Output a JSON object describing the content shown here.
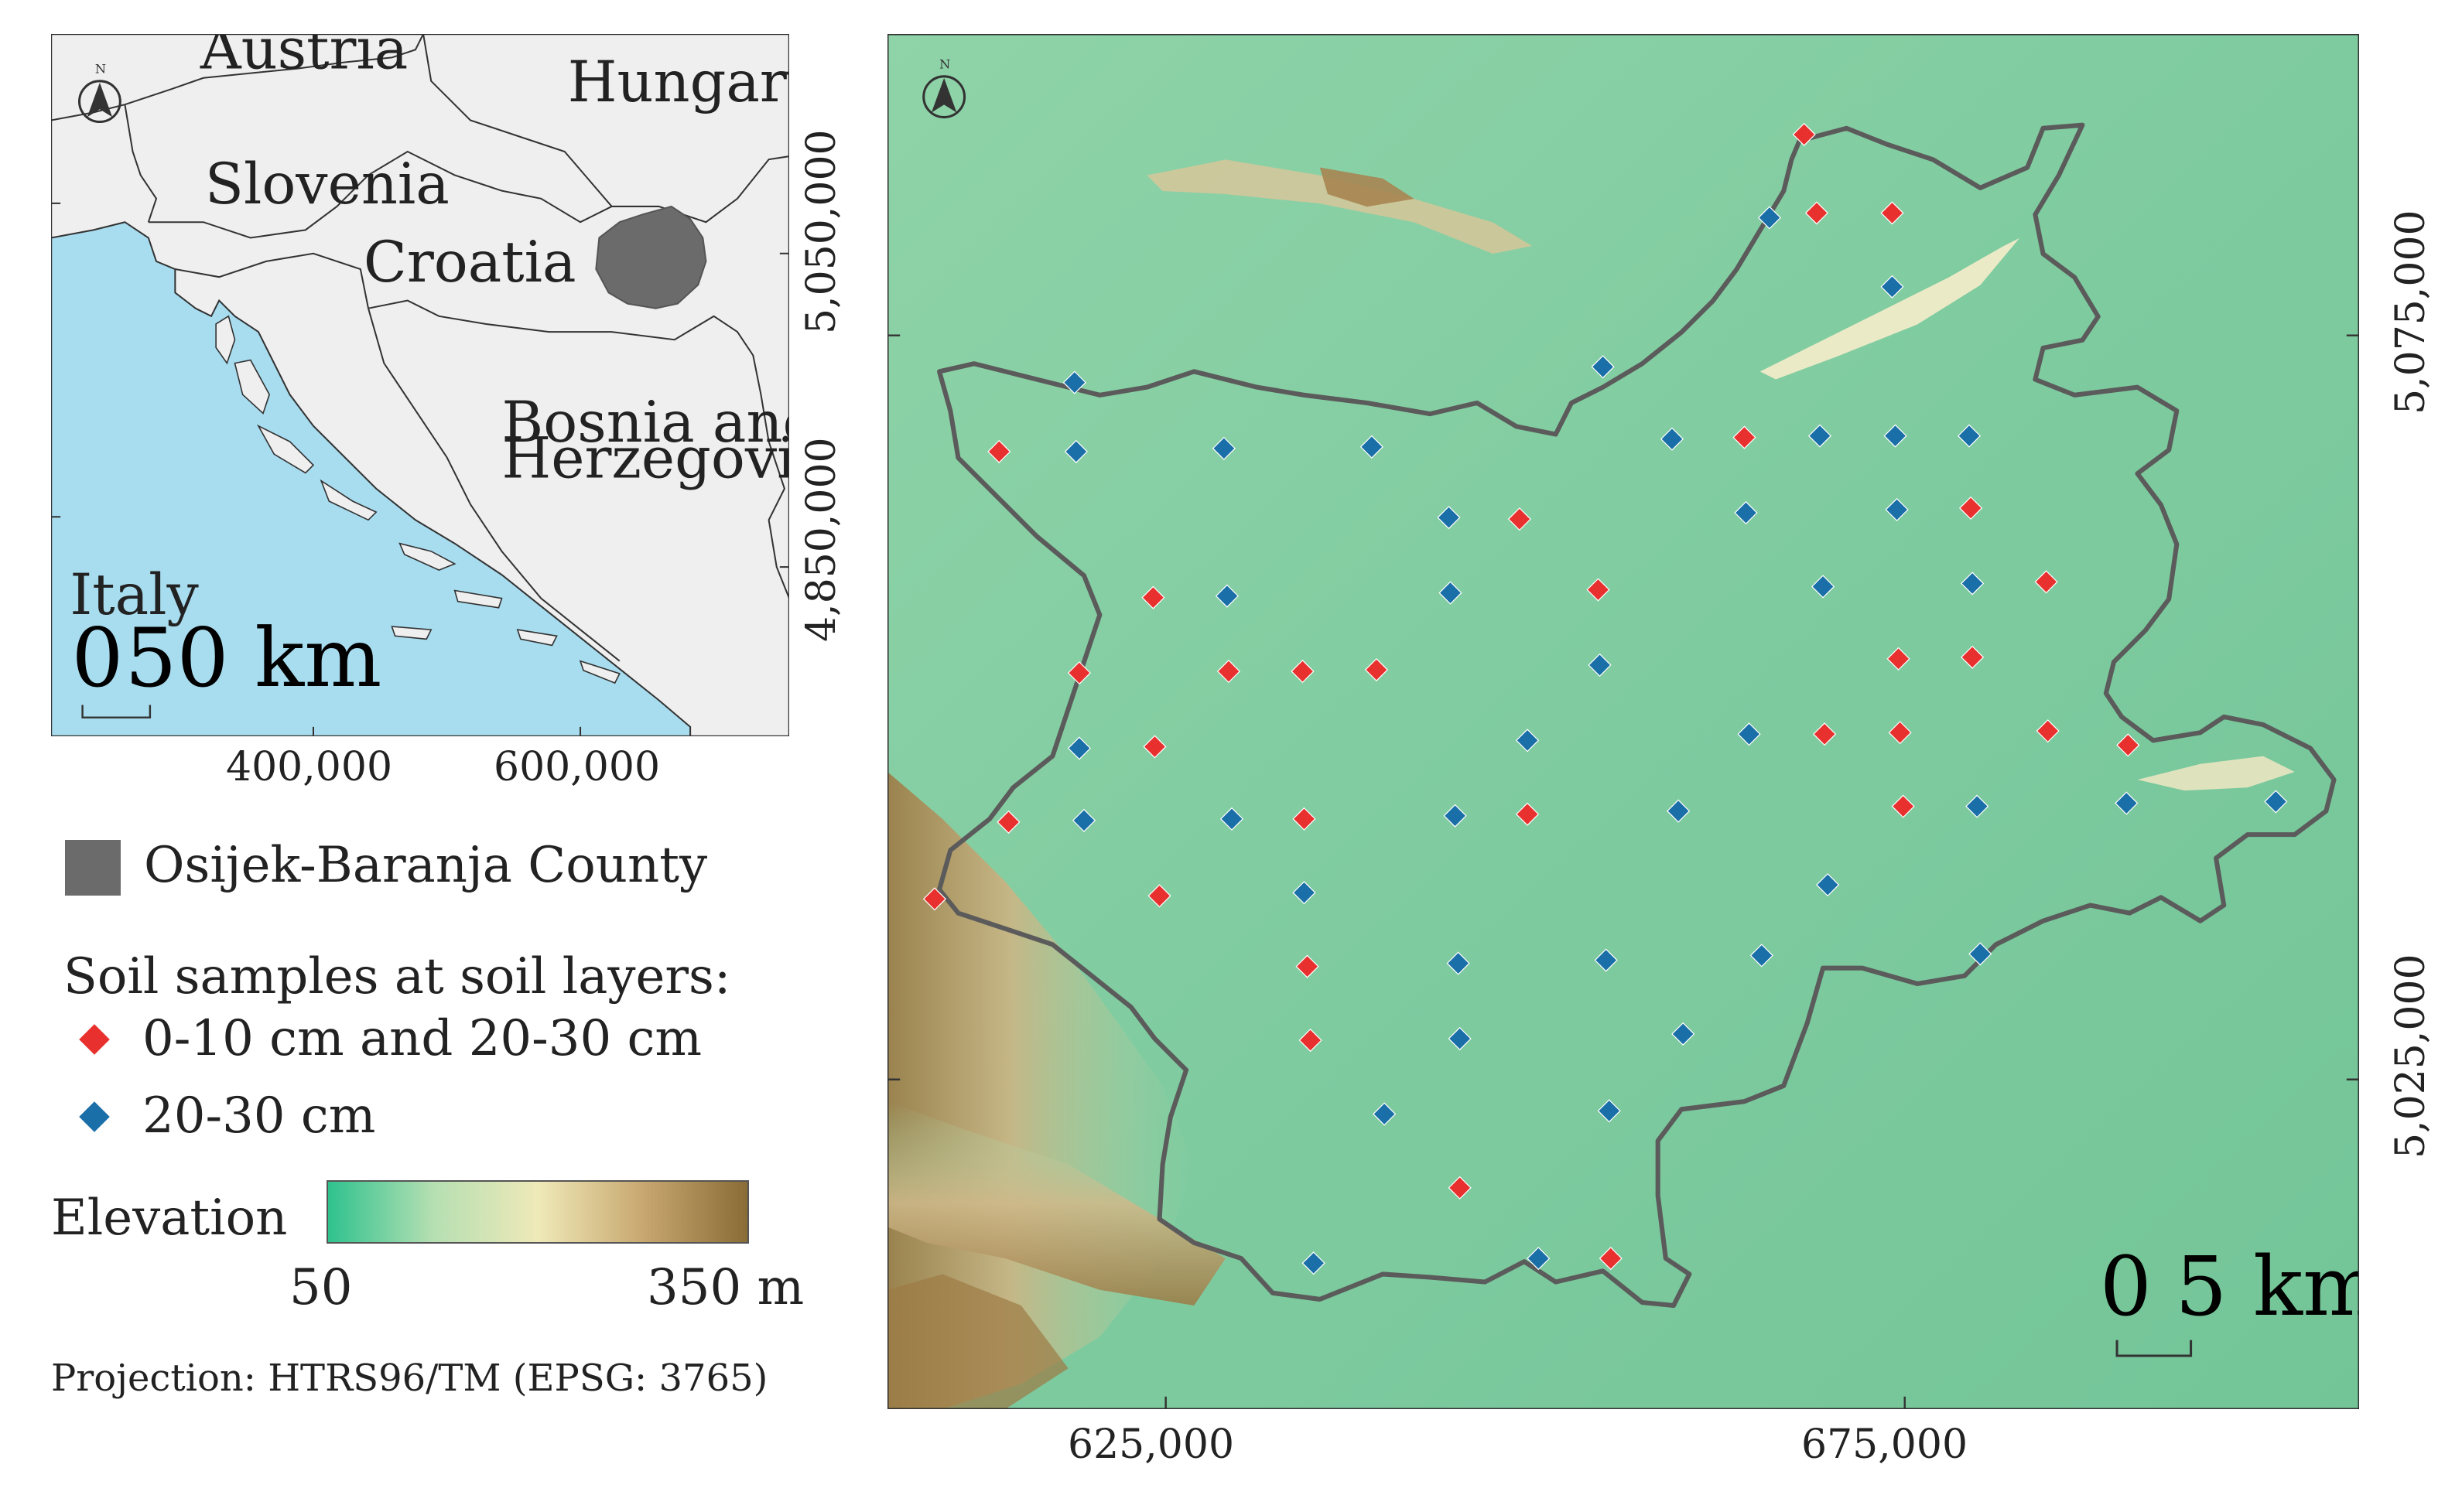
{
  "inset_map": {
    "countries": [
      "Austria",
      "Hungary",
      "Slovenia",
      "Croatia",
      "Bosnia and",
      "Herzegovina",
      "Italy"
    ],
    "scale_labels": [
      "0",
      "50 km"
    ],
    "x_ticks": [
      "400,000",
      "600,000"
    ],
    "y_ticks": [
      "5,050,000",
      "4,850,000"
    ],
    "colors": {
      "sea": "#a8dcef",
      "land": "#efefef",
      "county": "#6b6b6b",
      "border": "#333333"
    }
  },
  "main_map": {
    "x_ticks": [
      "625,000",
      "675,000"
    ],
    "y_ticks": [
      "5,075,000",
      "5,025,000"
    ],
    "scale_labels": [
      "0",
      "5 km"
    ],
    "colors": {
      "red": "#e8312f",
      "blue": "#1a6fa8",
      "border": "#5b5b5b"
    },
    "samples_red": [
      [
        1148,
        84
      ],
      [
        1156,
        134
      ],
      [
        1204,
        134
      ],
      [
        636,
        286
      ],
      [
        1110,
        277
      ],
      [
        967,
        329
      ],
      [
        1254,
        322
      ],
      [
        734,
        379
      ],
      [
        1017,
        374
      ],
      [
        1302,
        369
      ],
      [
        687,
        427
      ],
      [
        782,
        426
      ],
      [
        829,
        426
      ],
      [
        876,
        425
      ],
      [
        1208,
        418
      ],
      [
        1255,
        417
      ],
      [
        735,
        474
      ],
      [
        1161,
        466
      ],
      [
        1209,
        465
      ],
      [
        1303,
        464
      ],
      [
        1354,
        473
      ],
      [
        642,
        522
      ],
      [
        830,
        520
      ],
      [
        972,
        517
      ],
      [
        1211,
        512
      ],
      [
        595,
        571
      ],
      [
        738,
        569
      ],
      [
        832,
        614
      ],
      [
        834,
        661
      ],
      [
        929,
        755
      ],
      [
        1025,
        800
      ]
    ],
    "samples_blue": [
      [
        684,
        242
      ],
      [
        1126,
        137
      ],
      [
        1204,
        181
      ],
      [
        1020,
        232
      ],
      [
        685,
        286
      ],
      [
        779,
        284
      ],
      [
        873,
        283
      ],
      [
        1064,
        278
      ],
      [
        1158,
        276
      ],
      [
        1206,
        276
      ],
      [
        1253,
        276
      ],
      [
        922,
        328
      ],
      [
        1111,
        325
      ],
      [
        1207,
        323
      ],
      [
        781,
        378
      ],
      [
        923,
        376
      ],
      [
        1160,
        372
      ],
      [
        1255,
        370
      ],
      [
        1018,
        422
      ],
      [
        687,
        475
      ],
      [
        972,
        470
      ],
      [
        1113,
        466
      ],
      [
        690,
        521
      ],
      [
        784,
        520
      ],
      [
        926,
        518
      ],
      [
        1068,
        515
      ],
      [
        1258,
        512
      ],
      [
        1353,
        510
      ],
      [
        1448,
        509
      ],
      [
        830,
        567
      ],
      [
        1163,
        562
      ],
      [
        928,
        612
      ],
      [
        1022,
        610
      ],
      [
        1121,
        607
      ],
      [
        1260,
        606
      ],
      [
        929,
        660
      ],
      [
        1071,
        657
      ],
      [
        881,
        708
      ],
      [
        1024,
        706
      ],
      [
        836,
        803
      ],
      [
        979,
        800
      ]
    ]
  },
  "legend": {
    "county_label": "Osijek-Baranja County",
    "samples_title": "Soil samples at soil layers:",
    "red_label": "0-10 cm and 20-30 cm",
    "blue_label": "20-30 cm",
    "elevation_label": "Elevation",
    "elevation_min": "50",
    "elevation_max": "350 m",
    "elevation_colors": [
      "#2fc28e",
      "#b5dfb2",
      "#efe9b8",
      "#c8a870",
      "#8a6c36"
    ],
    "projection": "Projection: HTRS96/TM (EPSG: 3765)"
  }
}
